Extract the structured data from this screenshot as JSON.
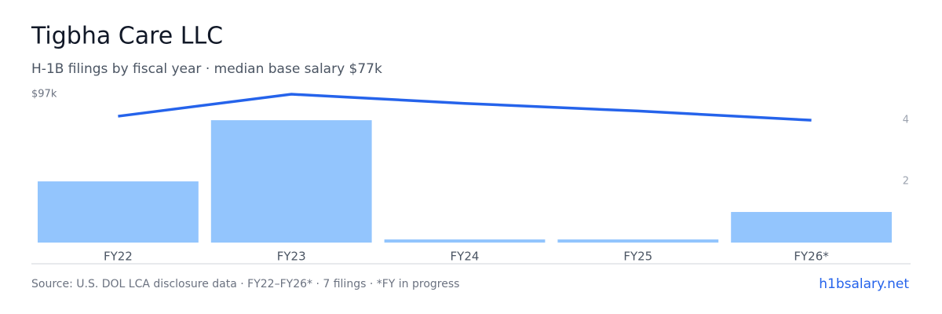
{
  "chart_data": {
    "type": "bar-line",
    "title": "Tigbha Care LLC",
    "subtitle": "H-1B filings by fiscal year · median base salary $77k",
    "categories": [
      "FY22",
      "FY23",
      "FY24",
      "FY25",
      "FY26*"
    ],
    "series": [
      {
        "name": "H-1B filings",
        "color": "#93c5fd",
        "values": [
          2,
          4,
          0,
          0,
          1
        ],
        "axis": "y2"
      },
      {
        "name": "Median base salary",
        "color": "#2563eb",
        "values": [
          82.6,
          97,
          91,
          86,
          80
        ]
      }
    ],
    "ylim": [
      0,
      97
    ],
    "yticks": [
      {
        "value": 97,
        "label": "$97k"
      }
    ],
    "y2lim": [
      0,
      4.85
    ],
    "y2ticks": [
      2,
      4
    ],
    "source": "Source: U.S. DOL LCA disclosure data · FY22–FY26* · 7 filings · *FY in progress",
    "brand": "h1bsalary.net"
  }
}
